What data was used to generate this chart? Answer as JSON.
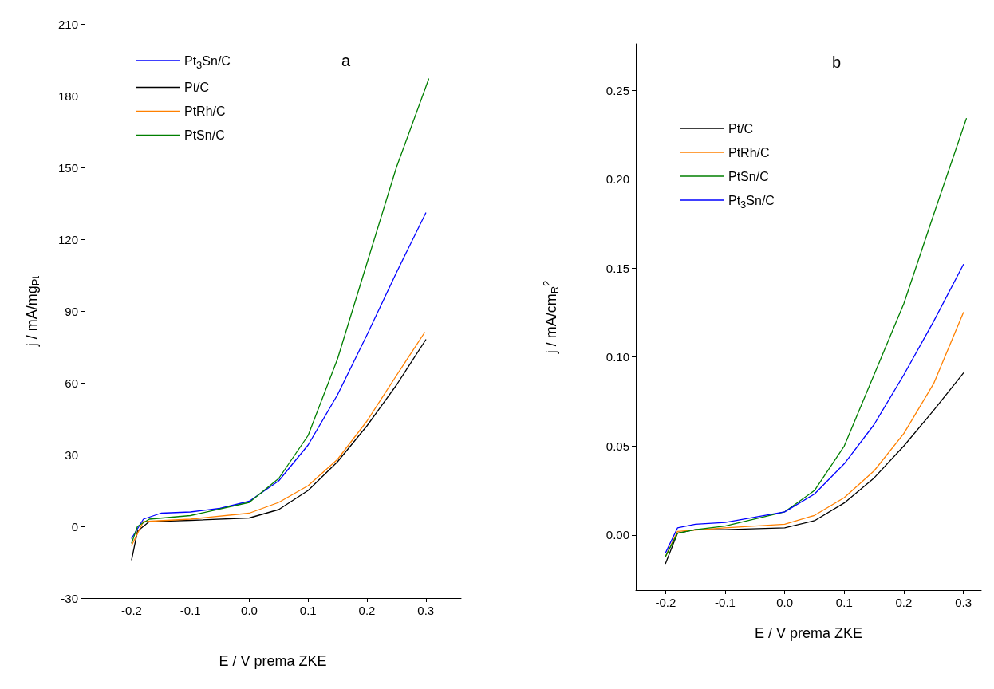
{
  "chart_data": [
    {
      "type": "line",
      "xlabel": "E / V prema ZKE",
      "ylabel": "j / mA/mg$_{Pt}$",
      "annotations": [
        "a"
      ],
      "xlim": [
        -0.28,
        0.36
      ],
      "ylim": [
        -30,
        210
      ],
      "xticks": [
        {
          "value": -0.2,
          "label": "-0.2"
        },
        {
          "value": -0.1,
          "label": "-0.1"
        },
        {
          "value": 0,
          "label": "0.0"
        },
        {
          "value": 0.1,
          "label": "0.1"
        },
        {
          "value": 0.2,
          "label": "0.2"
        },
        {
          "value": 0.3,
          "label": "0.3"
        }
      ],
      "yticks": [
        -30,
        0,
        30,
        60,
        90,
        120,
        150,
        180,
        210
      ],
      "grid": false,
      "legend": "top left",
      "line_style": "solid",
      "marker": "none",
      "series": [
        {
          "name": "Pt$_{3}$Sn/C",
          "color": "#0000ff",
          "x": [
            -0.2,
            -0.18,
            -0.15,
            -0.1,
            -0.05,
            0,
            0.05,
            0.1,
            0.15,
            0.2,
            0.25,
            0.3
          ],
          "values": [
            -5,
            3,
            5.5,
            6,
            7.5,
            10.5,
            19,
            34,
            55,
            80,
            106,
            131
          ]
        },
        {
          "name": "Pt/C",
          "color": "#000000",
          "x": [
            -0.2,
            -0.19,
            -0.17,
            -0.1,
            0,
            0.05,
            0.1,
            0.15,
            0.2,
            0.25,
            0.3
          ],
          "values": [
            -14,
            -2,
            2,
            2.5,
            3.5,
            7,
            15,
            27,
            42,
            59,
            78
          ]
        },
        {
          "name": "PtRh/C",
          "color": "#ff8000",
          "x": [
            -0.2,
            -0.18,
            -0.1,
            0,
            0.05,
            0.1,
            0.15,
            0.2,
            0.25,
            0.298
          ],
          "values": [
            -8,
            2,
            3,
            5.5,
            10,
            17,
            28,
            44,
            63,
            81
          ]
        },
        {
          "name": "PtSn/C",
          "color": "#007f00",
          "x": [
            -0.2,
            -0.19,
            -0.17,
            -0.1,
            0,
            0.05,
            0.1,
            0.15,
            0.2,
            0.25,
            0.305
          ],
          "values": [
            -7,
            0,
            3,
            4.5,
            10,
            20,
            38,
            70,
            110,
            150,
            187
          ]
        }
      ]
    },
    {
      "type": "line",
      "xlabel": "E / V prema ZKE",
      "ylabel": "j / mA/cm$_{R}$$^{2}$",
      "annotations": [
        "b"
      ],
      "xlim": [
        -0.25,
        0.33
      ],
      "ylim": [
        -0.031,
        0.276
      ],
      "xticks": [
        {
          "value": -0.2,
          "label": "-0.2"
        },
        {
          "value": -0.1,
          "label": "-0.1"
        },
        {
          "value": 0,
          "label": "0.0"
        },
        {
          "value": 0.1,
          "label": "0.1"
        },
        {
          "value": 0.2,
          "label": "0.2"
        },
        {
          "value": 0.3,
          "label": "0.3"
        }
      ],
      "yticks": [
        {
          "value": 0,
          "label": "0.00"
        },
        {
          "value": 0.05,
          "label": "0.05"
        },
        {
          "value": 0.1,
          "label": "0.10"
        },
        {
          "value": 0.15,
          "label": "0.15"
        },
        {
          "value": 0.2,
          "label": "0.20"
        },
        {
          "value": 0.25,
          "label": "0.25"
        }
      ],
      "grid": false,
      "legend": "top left",
      "line_style": "solid",
      "marker": "none",
      "series": [
        {
          "name": "Pt/C",
          "color": "#000000",
          "x": [
            -0.2,
            -0.18,
            -0.15,
            -0.1,
            0,
            0.05,
            0.1,
            0.15,
            0.2,
            0.25,
            0.3
          ],
          "values": [
            -0.016,
            0.001,
            0.003,
            0.003,
            0.004,
            0.008,
            0.018,
            0.032,
            0.05,
            0.07,
            0.091
          ]
        },
        {
          "name": "PtRh/C",
          "color": "#ff8000",
          "x": [
            -0.2,
            -0.18,
            -0.1,
            0,
            0.05,
            0.1,
            0.15,
            0.2,
            0.25,
            0.3
          ],
          "values": [
            -0.012,
            0.002,
            0.004,
            0.006,
            0.011,
            0.021,
            0.036,
            0.057,
            0.085,
            0.125
          ]
        },
        {
          "name": "PtSn/C",
          "color": "#007f00",
          "x": [
            -0.2,
            -0.18,
            -0.15,
            -0.1,
            0,
            0.05,
            0.1,
            0.15,
            0.2,
            0.25,
            0.305
          ],
          "values": [
            -0.012,
            0.001,
            0.003,
            0.005,
            0.013,
            0.025,
            0.05,
            0.09,
            0.13,
            0.18,
            0.234
          ]
        },
        {
          "name": "Pt$_{3}$Sn/C",
          "color": "#0000ff",
          "x": [
            -0.2,
            -0.18,
            -0.15,
            -0.1,
            0,
            0.05,
            0.1,
            0.15,
            0.2,
            0.25,
            0.3
          ],
          "values": [
            -0.01,
            0.004,
            0.006,
            0.007,
            0.013,
            0.023,
            0.04,
            0.062,
            0.09,
            0.12,
            0.152
          ]
        }
      ]
    }
  ]
}
